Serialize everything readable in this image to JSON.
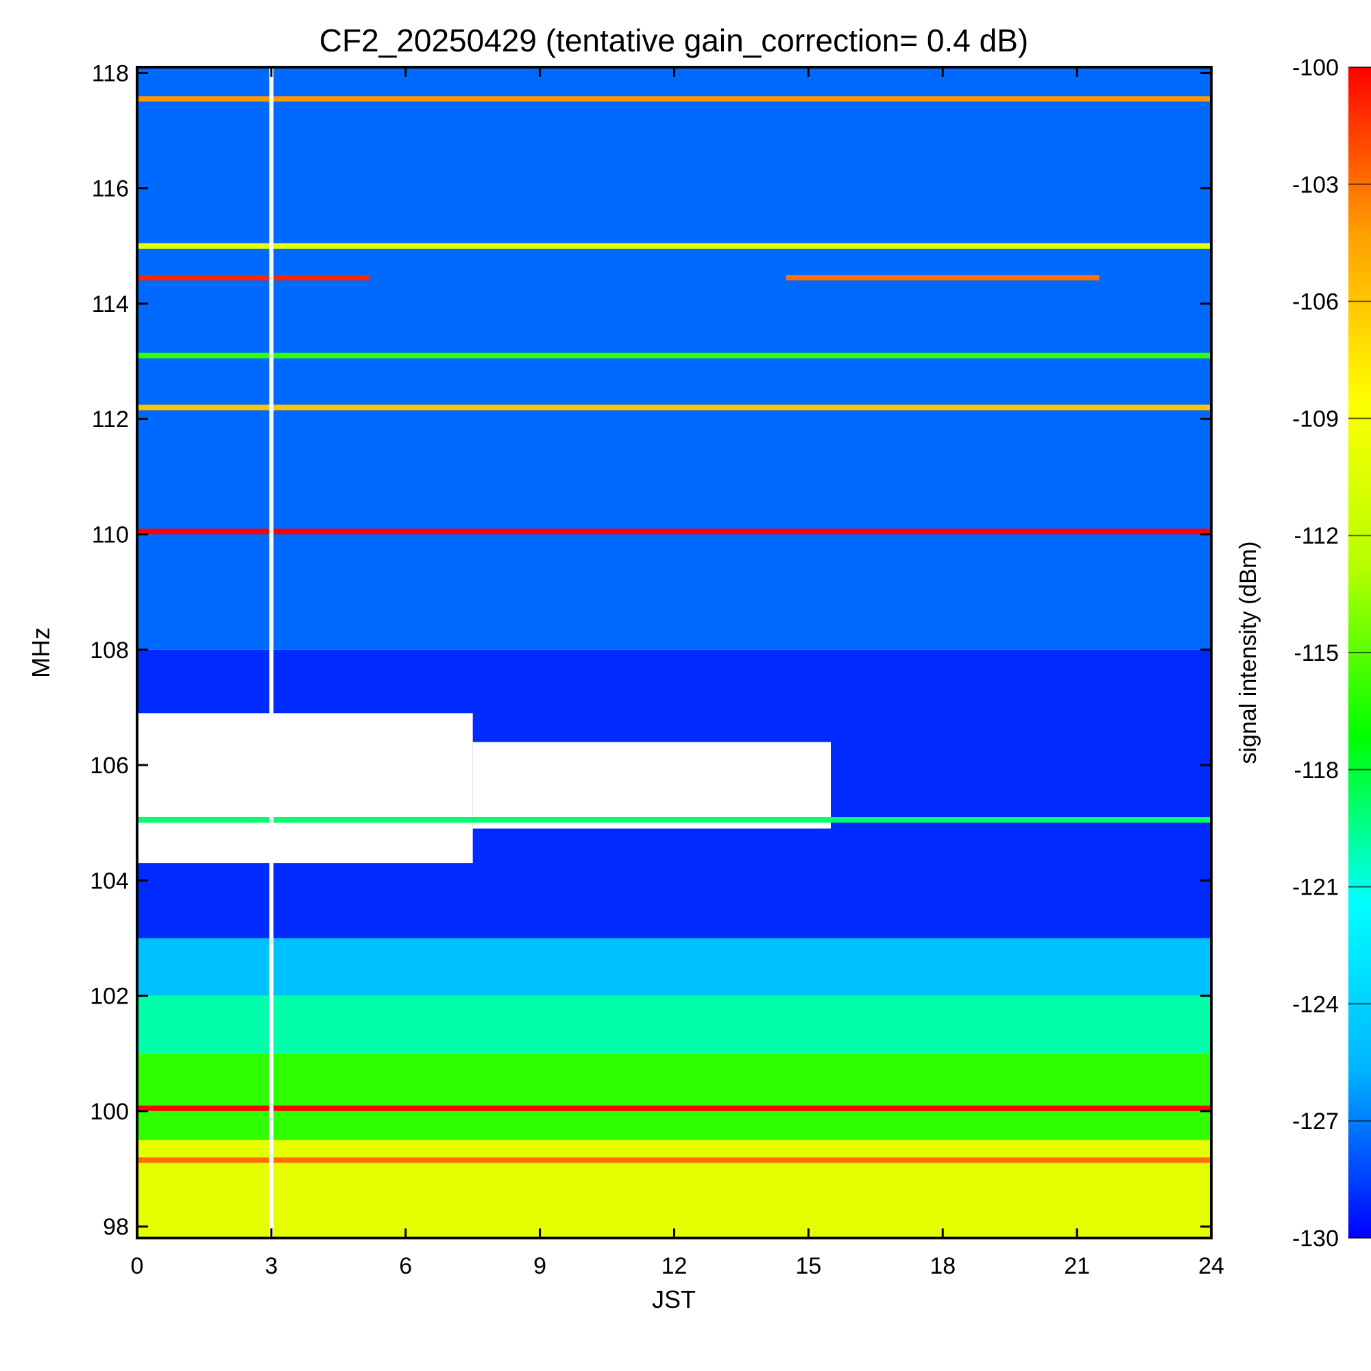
{
  "chart_data": {
    "type": "heatmap",
    "title": "CF2_20250429 (tentative gain_correction=  0.4 dB)",
    "xlabel": "JST",
    "ylabel": "MHz",
    "colorbar_label": "signal intensity (dBm)",
    "xlim": [
      0,
      24
    ],
    "ylim": [
      97.8,
      118.1
    ],
    "x_ticks": [
      0,
      3,
      6,
      9,
      12,
      15,
      18,
      21,
      24
    ],
    "y_ticks": [
      98,
      100,
      102,
      104,
      106,
      108,
      110,
      112,
      114,
      116,
      118
    ],
    "colorbar_range": [
      -130,
      -100
    ],
    "colorbar_ticks": [
      -100,
      -103,
      -106,
      -109,
      -112,
      -115,
      -118,
      -121,
      -124,
      -127,
      -130
    ],
    "colormap": [
      "#0000ff",
      "#00b4ff",
      "#00ffff",
      "#00ff00",
      "#b4ff00",
      "#ffff00",
      "#ffa000",
      "#ff0000"
    ],
    "data_gap_jst": 3.0,
    "background_levels_dBm": [
      {
        "freq_range_MHz": [
          108,
          118.1
        ],
        "level": -127.5
      },
      {
        "freq_range_MHz": [
          103,
          108
        ],
        "level": -129
      },
      {
        "freq_range_MHz": [
          102,
          103
        ],
        "level": -125
      },
      {
        "freq_range_MHz": [
          101,
          102
        ],
        "level": -120
      },
      {
        "freq_range_MHz": [
          99.5,
          101
        ],
        "level": -116
      },
      {
        "freq_range_MHz": [
          97.8,
          99.5
        ],
        "level": -110
      }
    ],
    "no_data_regions": [
      {
        "jst": [
          0,
          7.5
        ],
        "freq_MHz": [
          104.3,
          106.9
        ]
      },
      {
        "jst": [
          7.5,
          15.5
        ],
        "freq_MHz": [
          104.9,
          106.4
        ]
      }
    ],
    "signals": [
      {
        "freq_MHz": 117.55,
        "jst": [
          0,
          24
        ],
        "level_dBm": -104
      },
      {
        "freq_MHz": 115.0,
        "jst": [
          0,
          24
        ],
        "level_dBm": -110
      },
      {
        "freq_MHz": 114.45,
        "jst": [
          0,
          5.2
        ],
        "level_dBm": -101
      },
      {
        "freq_MHz": 114.45,
        "jst": [
          14.5,
          21.5
        ],
        "level_dBm": -103
      },
      {
        "freq_MHz": 113.1,
        "jst": [
          0,
          24
        ],
        "level_dBm": -116
      },
      {
        "freq_MHz": 112.2,
        "jst": [
          0,
          24
        ],
        "level_dBm": -106
      },
      {
        "freq_MHz": 110.05,
        "jst": [
          0,
          24
        ],
        "level_dBm": -100
      },
      {
        "freq_MHz": 105.05,
        "jst": [
          0,
          24
        ],
        "level_dBm": -119
      },
      {
        "freq_MHz": 100.05,
        "jst": [
          0,
          24
        ],
        "level_dBm": -100
      },
      {
        "freq_MHz": 99.15,
        "jst": [
          0,
          24
        ],
        "level_dBm": -103
      }
    ]
  }
}
